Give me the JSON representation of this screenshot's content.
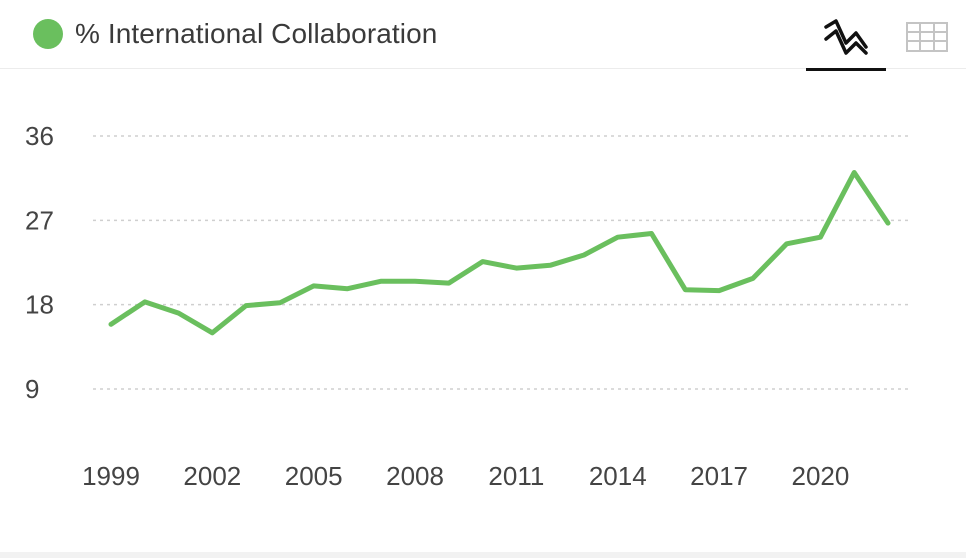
{
  "legend": {
    "label": "% International Collaboration",
    "color": "#6abf5e"
  },
  "toolbar": {
    "chart_view_icon": "line-chart-icon",
    "table_view_icon": "table-icon",
    "selected": "chart"
  },
  "chart_data": {
    "type": "line",
    "title": "",
    "xlabel": "",
    "ylabel": "",
    "ylim": [
      0,
      40
    ],
    "yticks": [
      9,
      18,
      27,
      36
    ],
    "xticks": [
      1999,
      2002,
      2005,
      2008,
      2011,
      2014,
      2017,
      2020
    ],
    "grid": "horizontal-dotted",
    "series": [
      {
        "name": "% International Collaboration",
        "color": "#6abf5e",
        "x": [
          1999,
          2000,
          2001,
          2002,
          2003,
          2004,
          2005,
          2006,
          2007,
          2008,
          2009,
          2010,
          2011,
          2012,
          2013,
          2014,
          2015,
          2016,
          2017,
          2018,
          2019,
          2020,
          2021,
          2022
        ],
        "values": [
          15.9,
          18.3,
          17.1,
          15.0,
          17.9,
          18.2,
          20.0,
          19.7,
          20.5,
          20.5,
          20.3,
          22.6,
          21.9,
          22.2,
          23.3,
          25.2,
          25.6,
          19.6,
          19.5,
          20.8,
          24.5,
          25.2,
          32.1,
          26.7
        ]
      }
    ]
  }
}
